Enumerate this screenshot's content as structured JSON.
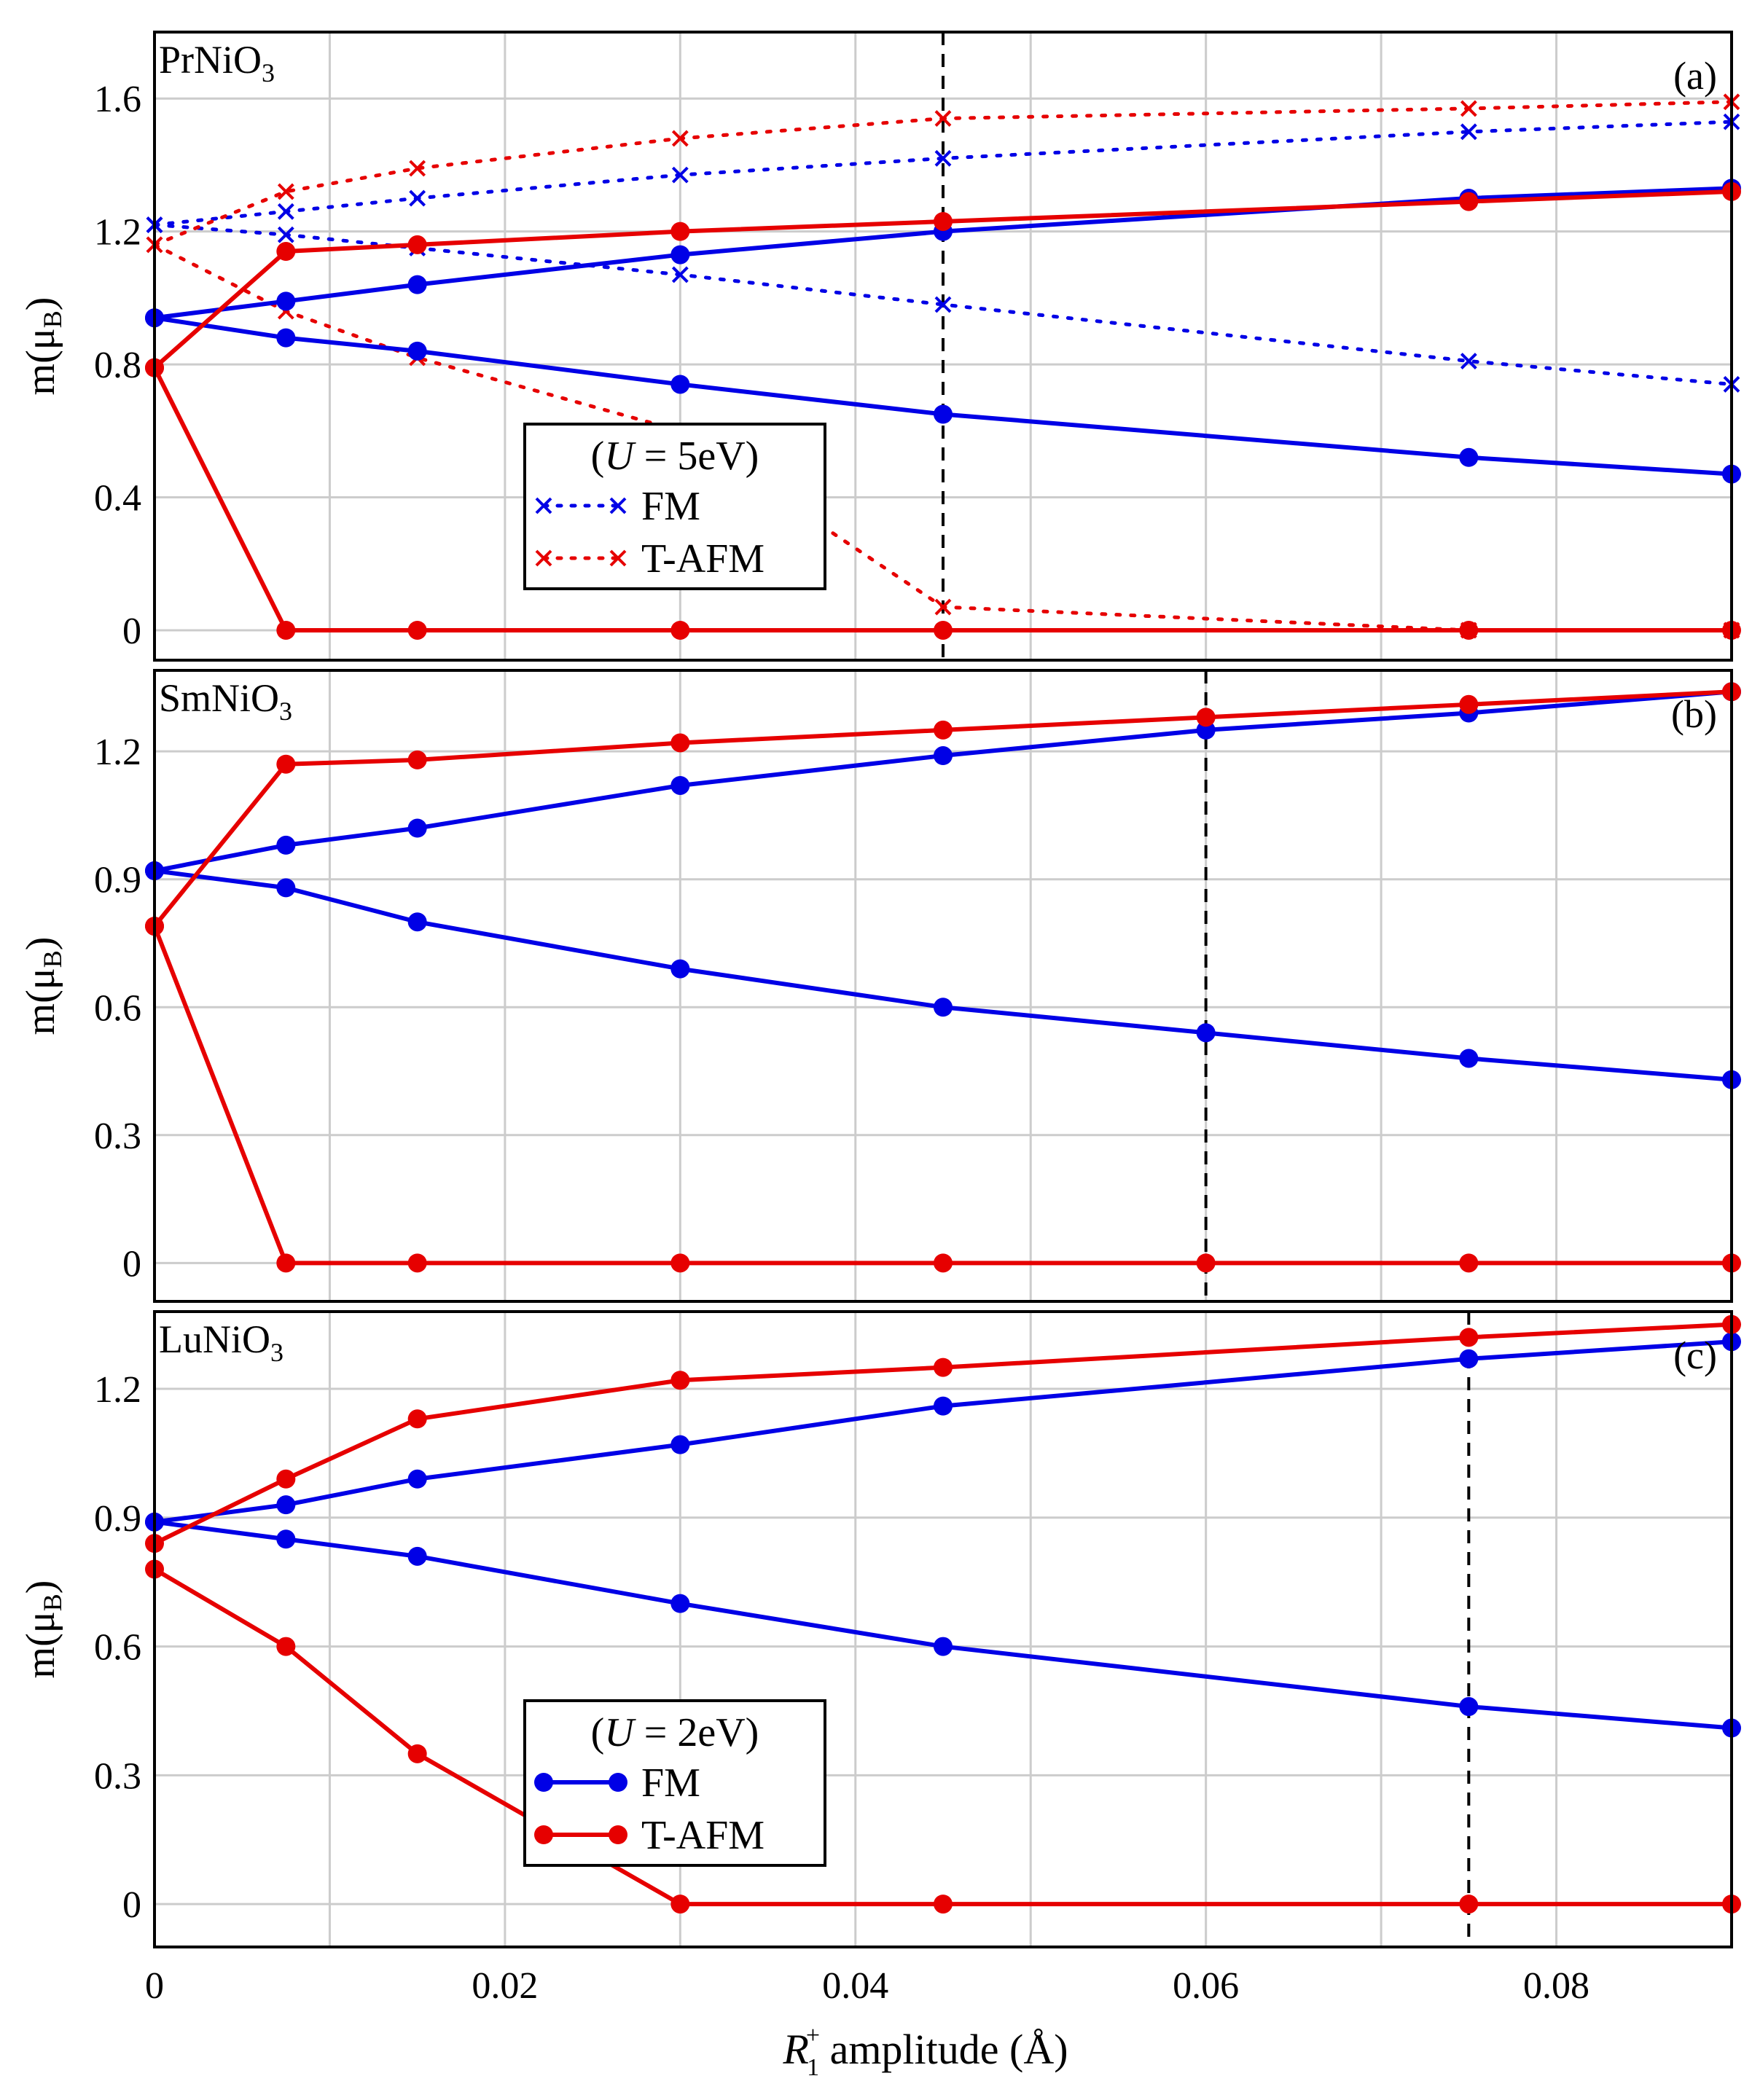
{
  "colors": {
    "fm": "#0000e6",
    "tafm": "#e60000",
    "grid": "#cccccc",
    "frame": "#000000"
  },
  "chart_data": [
    {
      "type": "line",
      "panel_name": "PrNiO",
      "panel_sub": "3",
      "panel_letter": "(a)",
      "ylabel": "m(μ",
      "ylabel_sub": "B",
      "ylabel_end": ")",
      "xlim": [
        0,
        0.09
      ],
      "ylim": [
        -0.09,
        1.8
      ],
      "yticks": [
        0,
        0.4,
        0.8,
        1.2,
        1.6
      ],
      "ytick_labels": [
        "0",
        "0.4",
        "0.8",
        "1.2",
        "1.6"
      ],
      "vline_x": 0.045,
      "legend": {
        "title": "(U = 5eV)",
        "title_u": "U",
        "title_rest": " = 5eV)",
        "entries": [
          "FM",
          "T-AFM"
        ],
        "marker": "cross",
        "linestyle": "dotted"
      },
      "series": [
        {
          "name": "FM (U=5eV) site 1",
          "color": "fm",
          "style": "dotted",
          "marker": "cross",
          "x": [
            0,
            0.0075,
            0.015,
            0.03,
            0.045,
            0.075,
            0.09
          ],
          "values": [
            1.22,
            1.26,
            1.3,
            1.37,
            1.42,
            1.5,
            1.53
          ]
        },
        {
          "name": "FM (U=5eV) site 2",
          "color": "fm",
          "style": "dotted",
          "marker": "cross",
          "x": [
            0,
            0.0075,
            0.015,
            0.03,
            0.045,
            0.075,
            0.09
          ],
          "values": [
            1.22,
            1.19,
            1.15,
            1.07,
            0.98,
            0.81,
            0.74
          ]
        },
        {
          "name": "T-AFM (U=5eV) site 1",
          "color": "tafm",
          "style": "dotted",
          "marker": "cross",
          "x": [
            0,
            0.0075,
            0.015,
            0.03,
            0.045,
            0.075,
            0.09
          ],
          "values": [
            1.16,
            1.32,
            1.39,
            1.48,
            1.54,
            1.57,
            1.59
          ]
        },
        {
          "name": "T-AFM (U=5eV) site 2",
          "color": "tafm",
          "style": "dotted",
          "marker": "cross",
          "x": [
            0,
            0.0075,
            0.015,
            0.03,
            0.045,
            0.075,
            0.09
          ],
          "values": [
            1.16,
            0.96,
            0.82,
            0.6,
            0.07,
            0.0,
            0.0
          ]
        },
        {
          "name": "FM (U=2eV) site 1",
          "color": "fm",
          "style": "solid",
          "marker": "dot",
          "x": [
            0,
            0.0075,
            0.015,
            0.03,
            0.045,
            0.075,
            0.09
          ],
          "values": [
            0.94,
            0.99,
            1.04,
            1.13,
            1.2,
            1.3,
            1.33
          ]
        },
        {
          "name": "FM (U=2eV) site 2",
          "color": "fm",
          "style": "solid",
          "marker": "dot",
          "x": [
            0,
            0.0075,
            0.015,
            0.03,
            0.045,
            0.075,
            0.09
          ],
          "values": [
            0.94,
            0.88,
            0.84,
            0.74,
            0.65,
            0.52,
            0.47
          ]
        },
        {
          "name": "T-AFM (U=2eV) site 1",
          "color": "tafm",
          "style": "solid",
          "marker": "dot",
          "x": [
            0,
            0.0075,
            0.015,
            0.03,
            0.045,
            0.075,
            0.09
          ],
          "values": [
            0.79,
            1.14,
            1.16,
            1.2,
            1.23,
            1.29,
            1.32
          ]
        },
        {
          "name": "T-AFM (U=2eV) site 2",
          "color": "tafm",
          "style": "solid",
          "marker": "dot",
          "x": [
            0,
            0.0075,
            0.015,
            0.03,
            0.045,
            0.075,
            0.09
          ],
          "values": [
            0.79,
            0.0,
            0.0,
            0.0,
            0.0,
            0.0,
            0.0
          ]
        }
      ]
    },
    {
      "type": "line",
      "panel_name": "SmNiO",
      "panel_sub": "3",
      "panel_letter": "(b)",
      "ylabel": "m(μ",
      "ylabel_sub": "B",
      "ylabel_end": ")",
      "xlim": [
        0,
        0.09
      ],
      "ylim": [
        -0.09,
        1.39
      ],
      "yticks": [
        0,
        0.3,
        0.6,
        0.9,
        1.2
      ],
      "ytick_labels": [
        "0",
        "0.3",
        "0.6",
        "0.9",
        "1.2"
      ],
      "vline_x": 0.06,
      "series": [
        {
          "name": "FM site 1",
          "color": "fm",
          "style": "solid",
          "marker": "dot",
          "x": [
            0,
            0.0075,
            0.015,
            0.03,
            0.045,
            0.06,
            0.075,
            0.09
          ],
          "values": [
            0.92,
            0.98,
            1.02,
            1.12,
            1.19,
            1.25,
            1.29,
            1.34
          ]
        },
        {
          "name": "FM site 2",
          "color": "fm",
          "style": "solid",
          "marker": "dot",
          "x": [
            0,
            0.0075,
            0.015,
            0.03,
            0.045,
            0.06,
            0.075,
            0.09
          ],
          "values": [
            0.92,
            0.88,
            0.8,
            0.69,
            0.6,
            0.54,
            0.48,
            0.43
          ]
        },
        {
          "name": "T-AFM site 1",
          "color": "tafm",
          "style": "solid",
          "marker": "dot",
          "x": [
            0,
            0.0075,
            0.015,
            0.03,
            0.045,
            0.06,
            0.075,
            0.09
          ],
          "values": [
            0.79,
            1.17,
            1.18,
            1.22,
            1.25,
            1.28,
            1.31,
            1.34
          ]
        },
        {
          "name": "T-AFM site 2",
          "color": "tafm",
          "style": "solid",
          "marker": "dot",
          "x": [
            0,
            0.0075,
            0.015,
            0.03,
            0.045,
            0.06,
            0.075,
            0.09
          ],
          "values": [
            0.79,
            0.0,
            0.0,
            0.0,
            0.0,
            0.0,
            0.0,
            0.0
          ]
        }
      ]
    },
    {
      "type": "line",
      "panel_name": "LuNiO",
      "panel_sub": "3",
      "panel_letter": "(c)",
      "ylabel": "m(μ",
      "ylabel_sub": "B",
      "ylabel_end": ")",
      "xlabel_italic": "R",
      "xlabel_sup": "+",
      "xlabel_sub": "1",
      "xlabel_rest": " amplitude (Å)",
      "xlim": [
        0,
        0.09
      ],
      "ylim": [
        -0.1,
        1.38
      ],
      "yticks": [
        0,
        0.3,
        0.6,
        0.9,
        1.2
      ],
      "ytick_labels": [
        "0",
        "0.3",
        "0.6",
        "0.9",
        "1.2"
      ],
      "xticks": [
        0,
        0.02,
        0.04,
        0.06,
        0.08
      ],
      "xtick_labels": [
        "0",
        "0.02",
        "0.04",
        "0.06",
        "0.08"
      ],
      "vline_x": 0.075,
      "legend": {
        "title": "(U = 2eV)",
        "title_u": "U",
        "title_rest": " = 2eV)",
        "entries": [
          "FM",
          "T-AFM"
        ],
        "marker": "dot",
        "linestyle": "solid"
      },
      "series": [
        {
          "name": "FM site 1",
          "color": "fm",
          "style": "solid",
          "marker": "dot",
          "x": [
            0,
            0.0075,
            0.015,
            0.03,
            0.045,
            0.075,
            0.09
          ],
          "values": [
            0.89,
            0.93,
            0.99,
            1.07,
            1.16,
            1.27,
            1.31
          ]
        },
        {
          "name": "FM site 2",
          "color": "fm",
          "style": "solid",
          "marker": "dot",
          "x": [
            0,
            0.0075,
            0.015,
            0.03,
            0.045,
            0.075,
            0.09
          ],
          "values": [
            0.89,
            0.85,
            0.81,
            0.7,
            0.6,
            0.46,
            0.41
          ]
        },
        {
          "name": "T-AFM site 1",
          "color": "tafm",
          "style": "solid",
          "marker": "dot",
          "x": [
            0,
            0.0075,
            0.015,
            0.03,
            0.045,
            0.075,
            0.09
          ],
          "values": [
            0.84,
            0.99,
            1.13,
            1.22,
            1.25,
            1.32,
            1.35
          ]
        },
        {
          "name": "T-AFM site 2",
          "color": "tafm",
          "style": "solid",
          "marker": "dot",
          "x": [
            0,
            0.0075,
            0.015,
            0.03,
            0.045,
            0.075,
            0.09
          ],
          "values": [
            0.78,
            0.6,
            0.35,
            0.0,
            0.0,
            0.0,
            0.0
          ]
        }
      ]
    }
  ]
}
